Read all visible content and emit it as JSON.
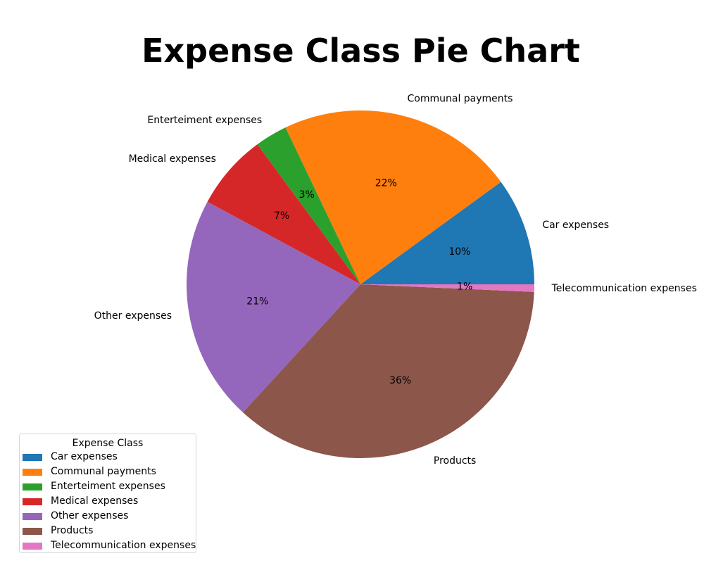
{
  "chart_data": {
    "type": "pie",
    "title": "Expense Class Pie Chart",
    "legend_title": "Expense Class",
    "legend_placement": "bottom-left",
    "start_angle_degrees": 0,
    "direction": "counterclockwise",
    "slices": [
      {
        "label": "Car expenses",
        "value": 10,
        "pct_label": "10%",
        "color": "#1f77b4"
      },
      {
        "label": "Communal payments",
        "value": 22,
        "pct_label": "22%",
        "color": "#ff7f0e"
      },
      {
        "label": "Enterteiment expenses",
        "value": 3,
        "pct_label": "3%",
        "color": "#2ca02c"
      },
      {
        "label": "Medical expenses",
        "value": 7,
        "pct_label": "7%",
        "color": "#d62728"
      },
      {
        "label": "Other expenses",
        "value": 21,
        "pct_label": "21%",
        "color": "#9467bd"
      },
      {
        "label": "Products",
        "value": 36,
        "pct_label": "36%",
        "color": "#8c564b"
      },
      {
        "label": "Telecommunication expenses",
        "value": 0.7,
        "pct_label": "1%",
        "color": "#e377c2"
      }
    ]
  }
}
